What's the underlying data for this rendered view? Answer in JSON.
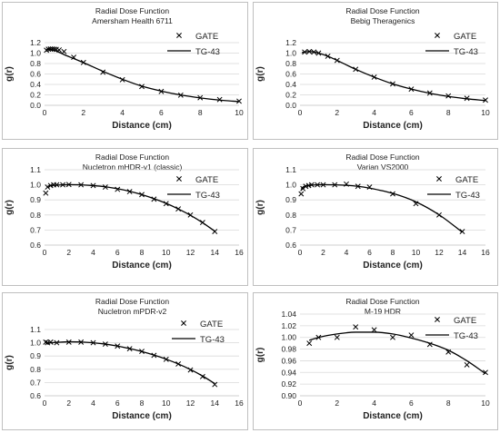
{
  "chart_data": [
    {
      "type": "line",
      "title": "Radial Dose Function",
      "subtitle": "Amersham Health 6711",
      "xlabel": "Distance (cm)",
      "ylabel": "g(r)",
      "xlim": [
        0,
        10
      ],
      "ylim": [
        0.0,
        1.2
      ],
      "xticks": [
        0,
        2,
        4,
        6,
        8,
        10
      ],
      "yticks": [
        0.0,
        0.2,
        0.4,
        0.6,
        0.8,
        1.0,
        1.2
      ],
      "ytick_decimals": 1,
      "grid": "horizontal",
      "legend": "top-right",
      "series": [
        {
          "name": "GATE",
          "style": "markers-x",
          "x": [
            0.1,
            0.2,
            0.3,
            0.4,
            0.5,
            0.6,
            0.75,
            1.0,
            1.5,
            2,
            3,
            4,
            5,
            6,
            7,
            8,
            9,
            10
          ],
          "y": [
            1.055,
            1.075,
            1.08,
            1.08,
            1.075,
            1.07,
            1.06,
            1.03,
            0.92,
            0.82,
            0.635,
            0.49,
            0.36,
            0.265,
            0.195,
            0.145,
            0.11,
            0.08
          ]
        },
        {
          "name": "TG-43",
          "style": "line",
          "x": [
            0.1,
            0.15,
            0.25,
            0.3,
            0.4,
            0.5,
            0.6,
            0.75,
            1.0,
            1.5,
            2,
            3,
            4,
            5,
            6,
            7,
            8,
            9,
            10
          ],
          "y": [
            1.055,
            1.082,
            1.071,
            1.069,
            1.062,
            1.051,
            1.039,
            1.015,
            0.972,
            0.895,
            0.818,
            0.651,
            0.499,
            0.367,
            0.272,
            0.197,
            0.142,
            0.1,
            0.07
          ]
        }
      ]
    },
    {
      "type": "line",
      "title": "Radial Dose Function",
      "subtitle": "Bebig Theragenics",
      "xlabel": "Distance (cm)",
      "ylabel": "g(r)",
      "xlim": [
        0,
        10
      ],
      "ylim": [
        0.0,
        1.2
      ],
      "xticks": [
        0,
        2,
        4,
        6,
        8,
        10
      ],
      "yticks": [
        0.0,
        0.2,
        0.4,
        0.6,
        0.8,
        1.0,
        1.2
      ],
      "ytick_decimals": 1,
      "grid": "horizontal",
      "legend": "top-right",
      "series": [
        {
          "name": "GATE",
          "style": "markers-x",
          "x": [
            0.25,
            0.5,
            0.75,
            1,
            1.5,
            2,
            3,
            4,
            5,
            6,
            7,
            8,
            9,
            10
          ],
          "y": [
            1.02,
            1.03,
            1.02,
            1.0,
            0.94,
            0.86,
            0.69,
            0.54,
            0.41,
            0.31,
            0.235,
            0.18,
            0.135,
            0.1
          ]
        },
        {
          "name": "TG-43",
          "style": "line",
          "x": [
            0.1,
            0.25,
            0.5,
            0.75,
            1,
            1.5,
            2,
            3,
            4,
            5,
            6,
            7,
            8,
            9,
            10
          ],
          "y": [
            1.01,
            1.02,
            1.03,
            1.02,
            1.0,
            0.94,
            0.86,
            0.69,
            0.54,
            0.41,
            0.31,
            0.23,
            0.17,
            0.125,
            0.09
          ]
        }
      ]
    },
    {
      "type": "line",
      "title": "Radial Dose Function",
      "subtitle": "Nucletron mHDR-v1 (classic)",
      "xlabel": "Distance (cm)",
      "ylabel": "g(r)",
      "xlim": [
        0,
        16
      ],
      "ylim": [
        0.6,
        1.1
      ],
      "xticks": [
        0,
        2,
        4,
        6,
        8,
        10,
        12,
        14,
        16
      ],
      "yticks": [
        0.6,
        0.7,
        0.8,
        0.9,
        1.0,
        1.1
      ],
      "ytick_decimals": 1,
      "grid": "horizontal",
      "legend": "top-right",
      "series": [
        {
          "name": "GATE",
          "style": "markers-x",
          "x": [
            0.1,
            0.25,
            0.5,
            0.75,
            1,
            1.5,
            2,
            3,
            4,
            5,
            6,
            7,
            8,
            9,
            10,
            11,
            12,
            13,
            14
          ],
          "y": [
            0.945,
            0.985,
            0.995,
            1.0,
            1.0,
            1.0,
            1.002,
            1.0,
            0.995,
            0.985,
            0.97,
            0.955,
            0.935,
            0.905,
            0.875,
            0.84,
            0.8,
            0.75,
            0.69
          ]
        },
        {
          "name": "TG-43",
          "style": "line",
          "x": [
            0.25,
            0.5,
            1,
            1.5,
            2,
            3,
            4,
            5,
            6,
            7,
            8,
            9,
            10,
            11,
            12,
            13,
            14
          ],
          "y": [
            0.99,
            0.995,
            0.998,
            1.0,
            1.001,
            1.0,
            0.995,
            0.987,
            0.974,
            0.957,
            0.935,
            0.908,
            0.877,
            0.84,
            0.798,
            0.749,
            0.692
          ]
        }
      ]
    },
    {
      "type": "line",
      "title": "Radial Dose Function",
      "subtitle": "Varian VS2000",
      "xlabel": "Distance (cm)",
      "ylabel": "g(r)",
      "xlim": [
        0,
        16
      ],
      "ylim": [
        0.6,
        1.1
      ],
      "xticks": [
        0,
        2,
        4,
        6,
        8,
        10,
        12,
        14,
        16
      ],
      "yticks": [
        0.6,
        0.7,
        0.8,
        0.9,
        1.0,
        1.1
      ],
      "ytick_decimals": 1,
      "grid": "horizontal",
      "legend": "top-right",
      "series": [
        {
          "name": "GATE",
          "style": "markers-x",
          "x": [
            0.1,
            0.25,
            0.5,
            0.75,
            1,
            1.5,
            2,
            3,
            4,
            5,
            6,
            8,
            10,
            12,
            14
          ],
          "y": [
            0.94,
            0.975,
            0.99,
            0.995,
            1.0,
            1.0,
            1.0,
            1.0,
            1.005,
            0.99,
            0.985,
            0.94,
            0.875,
            0.8,
            0.69
          ]
        },
        {
          "name": "TG-43",
          "style": "line",
          "x": [
            0.1,
            0.25,
            0.5,
            1,
            1.5,
            2,
            3,
            4,
            5,
            6,
            8,
            10,
            12,
            14
          ],
          "y": [
            0.97,
            0.985,
            0.993,
            0.998,
            1.0,
            1.001,
            1.0,
            0.997,
            0.99,
            0.978,
            0.943,
            0.887,
            0.801,
            0.686
          ]
        }
      ]
    },
    {
      "type": "line",
      "title": "Radial Dose Function",
      "subtitle": "Nucletron mPDR-v2",
      "xlabel": "Distance (cm)",
      "ylabel": "g(r)",
      "xlim": [
        0,
        16
      ],
      "ylim": [
        0.6,
        1.1
      ],
      "xticks": [
        0,
        2,
        4,
        6,
        8,
        10,
        12,
        14,
        16
      ],
      "yticks": [
        0.6,
        0.7,
        0.8,
        0.9,
        1.0,
        1.1
      ],
      "ytick_decimals": 1,
      "grid": "horizontal",
      "legend": "top-right",
      "series": [
        {
          "name": "GATE",
          "style": "markers-x",
          "x": [
            0.1,
            0.25,
            0.5,
            1,
            2,
            3,
            4,
            5,
            6,
            7,
            8,
            9,
            10,
            11,
            12,
            13,
            14
          ],
          "y": [
            1.005,
            1.0,
            1.005,
            1.0,
            1.005,
            1.005,
            1.0,
            0.99,
            0.975,
            0.955,
            0.935,
            0.905,
            0.875,
            0.84,
            0.795,
            0.745,
            0.685
          ]
        },
        {
          "name": "TG-43",
          "style": "line",
          "x": [
            0.1,
            0.25,
            0.5,
            1,
            2,
            3,
            4,
            5,
            6,
            7,
            8,
            9,
            10,
            11,
            12,
            13,
            14
          ],
          "y": [
            0.995,
            0.998,
            1.0,
            1.003,
            1.007,
            1.006,
            1.0,
            0.99,
            0.975,
            0.956,
            0.934,
            0.907,
            0.876,
            0.84,
            0.798,
            0.749,
            0.692
          ]
        }
      ]
    },
    {
      "type": "line",
      "title": "Radial Dose Function",
      "subtitle": "M-19 HDR",
      "xlabel": "Distance (cm)",
      "ylabel": "g(r)",
      "xlim": [
        0,
        10
      ],
      "ylim": [
        0.9,
        1.04
      ],
      "xticks": [
        0,
        2,
        4,
        6,
        8,
        10
      ],
      "yticks": [
        0.9,
        0.92,
        0.94,
        0.96,
        0.98,
        1.0,
        1.02,
        1.04
      ],
      "ytick_decimals": 2,
      "grid": "horizontal",
      "legend": "top-right",
      "series": [
        {
          "name": "GATE",
          "style": "markers-x",
          "x": [
            0.5,
            1,
            2,
            3,
            4,
            5,
            6,
            7,
            8,
            9,
            10
          ],
          "y": [
            0.99,
            1.0,
            1.0,
            1.018,
            1.013,
            1.0,
            1.004,
            0.988,
            0.975,
            0.953,
            0.94
          ]
        },
        {
          "name": "TG-43",
          "style": "line",
          "x": [
            0.5,
            1,
            2,
            3,
            4,
            5,
            6,
            7,
            8,
            9,
            10
          ],
          "y": [
            0.995,
            1.0,
            1.006,
            1.009,
            1.009,
            1.006,
            0.999,
            0.99,
            0.978,
            0.96,
            0.938
          ]
        }
      ]
    }
  ]
}
